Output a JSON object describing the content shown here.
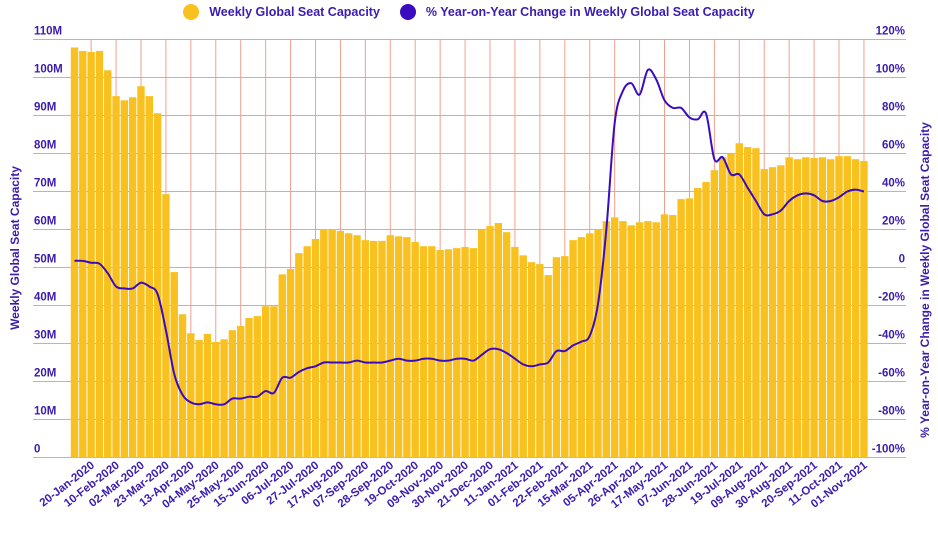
{
  "chart_data": {
    "type": "bar+line",
    "title": "",
    "legend": {
      "placement": "top-center",
      "entries": [
        "Weekly Global Seat Capacity",
        "% Year-on-Year Change in Weekly Global Seat Capacity"
      ]
    },
    "ylabel_left": "Weekly Global Seat Capacity",
    "ylabel_right": "% Year-on-Year Change in Weekly Global Seat Capacity",
    "ylim_left": [
      0,
      110
    ],
    "ylim_right": [
      -100,
      120
    ],
    "yticks_left": [
      "0",
      "10M",
      "20M",
      "30M",
      "40M",
      "50M",
      "60M",
      "70M",
      "80M",
      "90M",
      "100M",
      "110M"
    ],
    "yticks_right": [
      "-100%",
      "-80%",
      "-60%",
      "-40%",
      "-20%",
      "0",
      "20%",
      "40%",
      "60%",
      "80%",
      "100%",
      "120%"
    ],
    "grid": true,
    "tick_every": 3,
    "tick_offset": 2,
    "tick_labels": [
      "20-Jan-2020",
      "10-Feb-2020",
      "02-Mar-2020",
      "23-Mar-2020",
      "13-Apr-2020",
      "04-May-2020",
      "25-May-2020",
      "15-Jun-2020",
      "06-Jul-2020",
      "27-Jul-2020",
      "17-Aug-2020",
      "07-Sep-2020",
      "28-Sep-2020",
      "19-Oct-2020",
      "09-Nov-2020",
      "30-Nov-2020",
      "21-Dec-2020",
      "11-Jan-2021",
      "01-Feb-2021",
      "22-Feb-2021",
      "15-Mar-2021",
      "05-Apr-2021",
      "26-Apr-2021",
      "17-May-2021",
      "07-Jun-2021",
      "28-Jun-2021",
      "19-Jul-2021",
      "09-Aug-2021",
      "30-Aug-2021",
      "20-Sep-2021",
      "11-Oct-2021",
      "01-Nov-2021"
    ],
    "series": [
      {
        "name": "Weekly Global Seat Capacity",
        "type": "bar",
        "axis": "left",
        "unit": "M seats",
        "color": "#F9C11F",
        "values": [
          107.9,
          107,
          106.7,
          107,
          101.9,
          95.1,
          94,
          94.8,
          97.7,
          95.1,
          90.6,
          69.3,
          48.8,
          37.7,
          32.7,
          30.9,
          32.5,
          30.4,
          31.1,
          33.5,
          34.6,
          36.7,
          37.2,
          39.8,
          39.8,
          48.2,
          49.6,
          53.8,
          55.6,
          57.5,
          60,
          60,
          59.6,
          59,
          58.5,
          57.2,
          57,
          57,
          58.5,
          58.2,
          58,
          56.7,
          55.6,
          55.6,
          54.6,
          54.8,
          55.1,
          55.4,
          55.1,
          60,
          60.9,
          61.7,
          59.3,
          55.4,
          53.2,
          51.4,
          50.9,
          48,
          52.7,
          53,
          57.2,
          58,
          59,
          60,
          62.2,
          63.2,
          62.2,
          61.1,
          61.9,
          62.2,
          61.9,
          64,
          63.8,
          68,
          68.2,
          70.9,
          72.5,
          75.6,
          79,
          80,
          82.7,
          81.7,
          81.4,
          75.9,
          76.4,
          76.9,
          79,
          78.5,
          79,
          78.8,
          79,
          78.5,
          79.3,
          79.3,
          78.5,
          78
        ]
      },
      {
        "name": "% Year-on-Year Change in Weekly Global Seat Capacity",
        "type": "line",
        "axis": "right",
        "unit": "%",
        "color": "#3A0CC0",
        "values": [
          3.5,
          3.5,
          2.5,
          2,
          -3,
          -10,
          -11,
          -11,
          -8,
          -10,
          -14,
          -33,
          -56,
          -67,
          -71,
          -72,
          -71,
          -72,
          -72,
          -69,
          -69,
          -68,
          -68,
          -65,
          -66,
          -58,
          -58,
          -55,
          -53,
          -52,
          -50,
          -50,
          -50,
          -50,
          -49,
          -50,
          -50,
          -50,
          -49,
          -48,
          -49,
          -49,
          -48,
          -48,
          -49,
          -49,
          -48,
          -48,
          -49,
          -46,
          -43,
          -43,
          -45,
          -48,
          -51,
          -52,
          -51,
          -50,
          -44,
          -44,
          -41,
          -39,
          -36,
          -19,
          20,
          76,
          93,
          97,
          91,
          104,
          99,
          88,
          84,
          84,
          79,
          78,
          81,
          57,
          58,
          49,
          49,
          42,
          35,
          28,
          28,
          30,
          35,
          38,
          39,
          38,
          35,
          35,
          37,
          40,
          41,
          40
        ]
      }
    ]
  }
}
